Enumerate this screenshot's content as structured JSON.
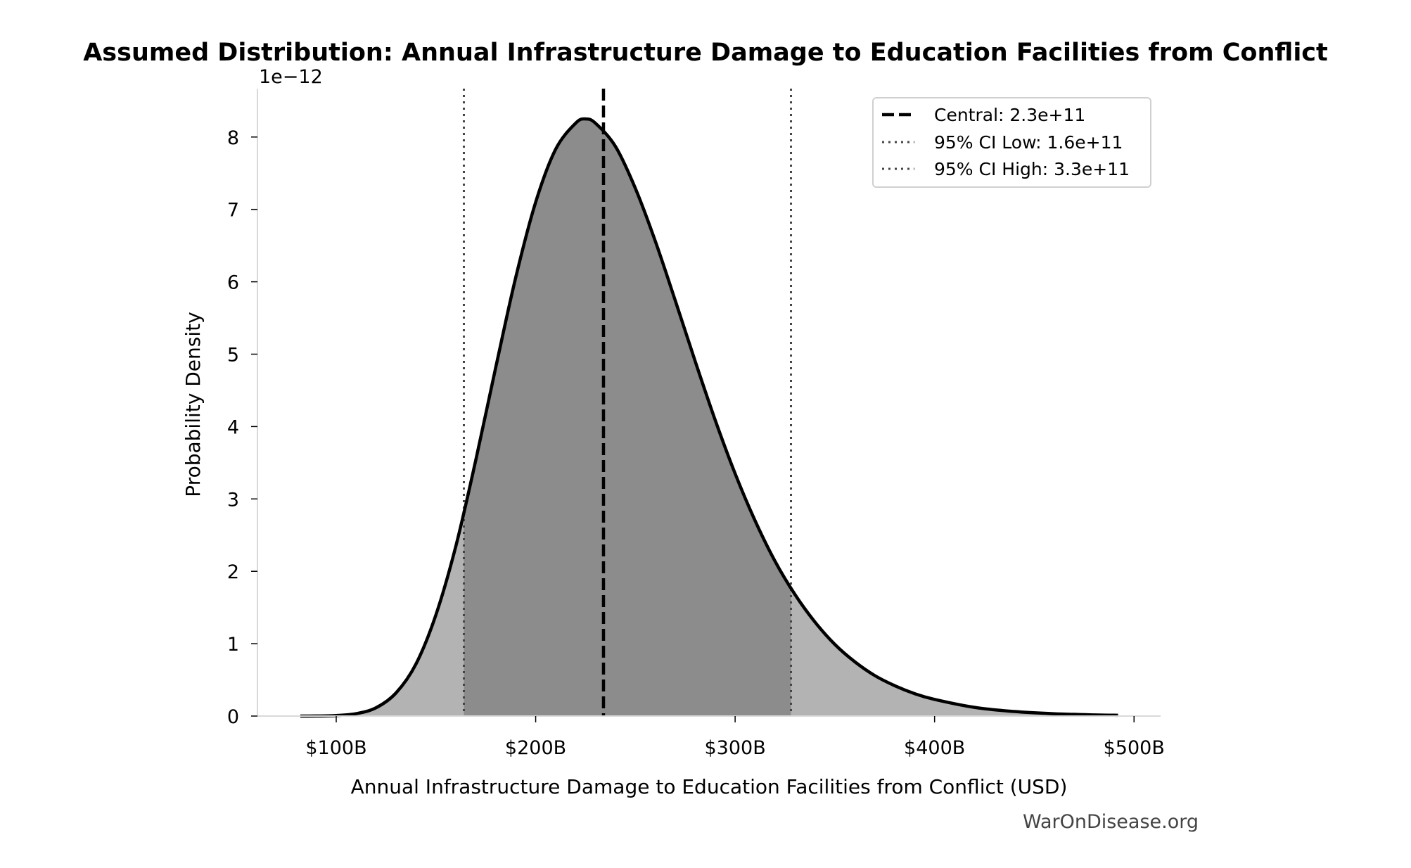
{
  "chart_data": {
    "type": "area",
    "title": "Assumed Distribution: Annual Infrastructure Damage to Education Facilities from Conflict",
    "xlabel": "Annual Infrastructure Damage to Education Facilities from Conflict (USD)",
    "ylabel": "Probability Density",
    "y_offset_label": "1e−12",
    "xlim": [
      60,
      510
    ],
    "ylim": [
      0,
      8.67
    ],
    "x_units": "billion USD",
    "y_units": "1e-12",
    "x_ticks": [
      100,
      200,
      300,
      400,
      500
    ],
    "x_tick_labels": [
      "$100B",
      "$200B",
      "$300B",
      "$400B",
      "$500B"
    ],
    "y_ticks": [
      0,
      1,
      2,
      3,
      4,
      5,
      6,
      7,
      8
    ],
    "y_tick_labels": [
      "0",
      "1",
      "2",
      "3",
      "4",
      "5",
      "6",
      "7",
      "8"
    ],
    "grid": false,
    "legend_position": "top-right",
    "series": {
      "x": [
        82,
        90,
        100,
        110,
        120,
        130,
        140,
        150,
        160,
        170,
        180,
        190,
        200,
        210,
        220,
        225,
        230,
        240,
        250,
        260,
        270,
        280,
        290,
        300,
        310,
        320,
        330,
        340,
        350,
        360,
        370,
        380,
        390,
        400,
        420,
        440,
        460,
        480,
        492
      ],
      "y": [
        0.0001,
        0.0009,
        0.007,
        0.033,
        0.115,
        0.32,
        0.72,
        1.4,
        2.35,
        3.54,
        4.82,
        6.06,
        7.1,
        7.83,
        8.19,
        8.25,
        8.19,
        7.87,
        7.29,
        6.56,
        5.74,
        4.9,
        4.09,
        3.35,
        2.7,
        2.14,
        1.68,
        1.3,
        0.99,
        0.75,
        0.56,
        0.42,
        0.31,
        0.23,
        0.12,
        0.063,
        0.032,
        0.016,
        0.011
      ]
    },
    "ci_shaded_range": [
      164,
      328
    ],
    "reference_lines": [
      {
        "label": "Central: 2.3e+11",
        "x": 234,
        "style": "dashed"
      },
      {
        "label": "95% CI Low: 1.6e+11",
        "x": 164,
        "style": "dotted"
      },
      {
        "label": "95% CI High: 3.3e+11",
        "x": 328,
        "style": "dotted"
      }
    ],
    "colors": {
      "tail_fill": "#b3b3b3",
      "ci_fill": "#8c8c8c",
      "curve": "#000000",
      "ci_line": "#444444"
    }
  },
  "watermark": "WarOnDisease.org"
}
